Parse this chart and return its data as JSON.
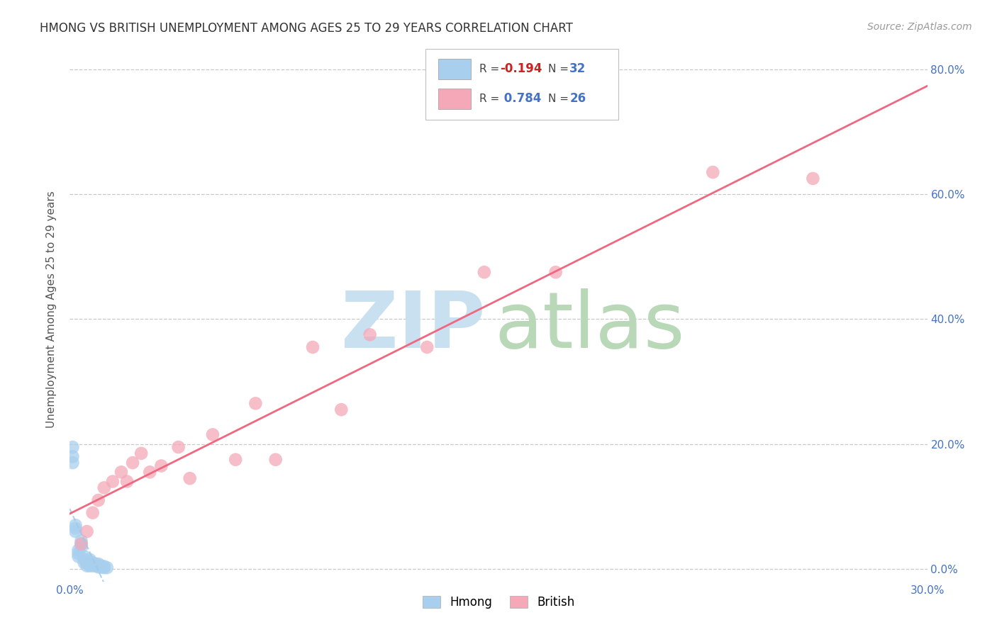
{
  "title": "HMONG VS BRITISH UNEMPLOYMENT AMONG AGES 25 TO 29 YEARS CORRELATION CHART",
  "source": "Source: ZipAtlas.com",
  "xlabel": "",
  "ylabel": "Unemployment Among Ages 25 to 29 years",
  "xlim": [
    0.0,
    0.3
  ],
  "ylim": [
    -0.02,
    0.85
  ],
  "xticks": [
    0.0,
    0.05,
    0.1,
    0.15,
    0.2,
    0.25,
    0.3
  ],
  "yticks": [
    0.0,
    0.2,
    0.4,
    0.6,
    0.8
  ],
  "xticklabels": [
    "0.0%",
    "",
    "",
    "",
    "",
    "",
    "30.0%"
  ],
  "yticklabels": [
    "0.0%",
    "20.0%",
    "40.0%",
    "60.0%",
    "80.0%"
  ],
  "background_color": "#ffffff",
  "grid_color": "#c8c8c8",
  "hmong_color": "#a8d0ee",
  "british_color": "#f4a8b8",
  "hmong_line_color": "#a0c8e8",
  "british_line_color": "#f06880",
  "hmong_R": -0.194,
  "hmong_N": 32,
  "british_R": 0.784,
  "british_N": 26,
  "legend_label_hmong": "Hmong",
  "legend_label_british": "British",
  "hmong_x": [
    0.001,
    0.001,
    0.001,
    0.002,
    0.002,
    0.002,
    0.003,
    0.003,
    0.003,
    0.004,
    0.004,
    0.004,
    0.005,
    0.005,
    0.005,
    0.006,
    0.006,
    0.007,
    0.007,
    0.007,
    0.008,
    0.008,
    0.009,
    0.009,
    0.01,
    0.01,
    0.01,
    0.011,
    0.011,
    0.012,
    0.012,
    0.013
  ],
  "hmong_y": [
    0.17,
    0.18,
    0.195,
    0.06,
    0.065,
    0.07,
    0.02,
    0.025,
    0.03,
    0.035,
    0.04,
    0.045,
    0.01,
    0.015,
    0.02,
    0.005,
    0.01,
    0.005,
    0.01,
    0.015,
    0.005,
    0.01,
    0.005,
    0.008,
    0.003,
    0.005,
    0.008,
    0.003,
    0.005,
    0.002,
    0.004,
    0.002
  ],
  "british_x": [
    0.004,
    0.006,
    0.008,
    0.01,
    0.012,
    0.015,
    0.018,
    0.02,
    0.022,
    0.025,
    0.028,
    0.032,
    0.038,
    0.042,
    0.05,
    0.058,
    0.065,
    0.072,
    0.085,
    0.095,
    0.105,
    0.125,
    0.145,
    0.17,
    0.225,
    0.26
  ],
  "british_y": [
    0.04,
    0.06,
    0.09,
    0.11,
    0.13,
    0.14,
    0.155,
    0.14,
    0.17,
    0.185,
    0.155,
    0.165,
    0.195,
    0.145,
    0.215,
    0.175,
    0.265,
    0.175,
    0.355,
    0.255,
    0.375,
    0.355,
    0.475,
    0.475,
    0.635,
    0.625
  ]
}
